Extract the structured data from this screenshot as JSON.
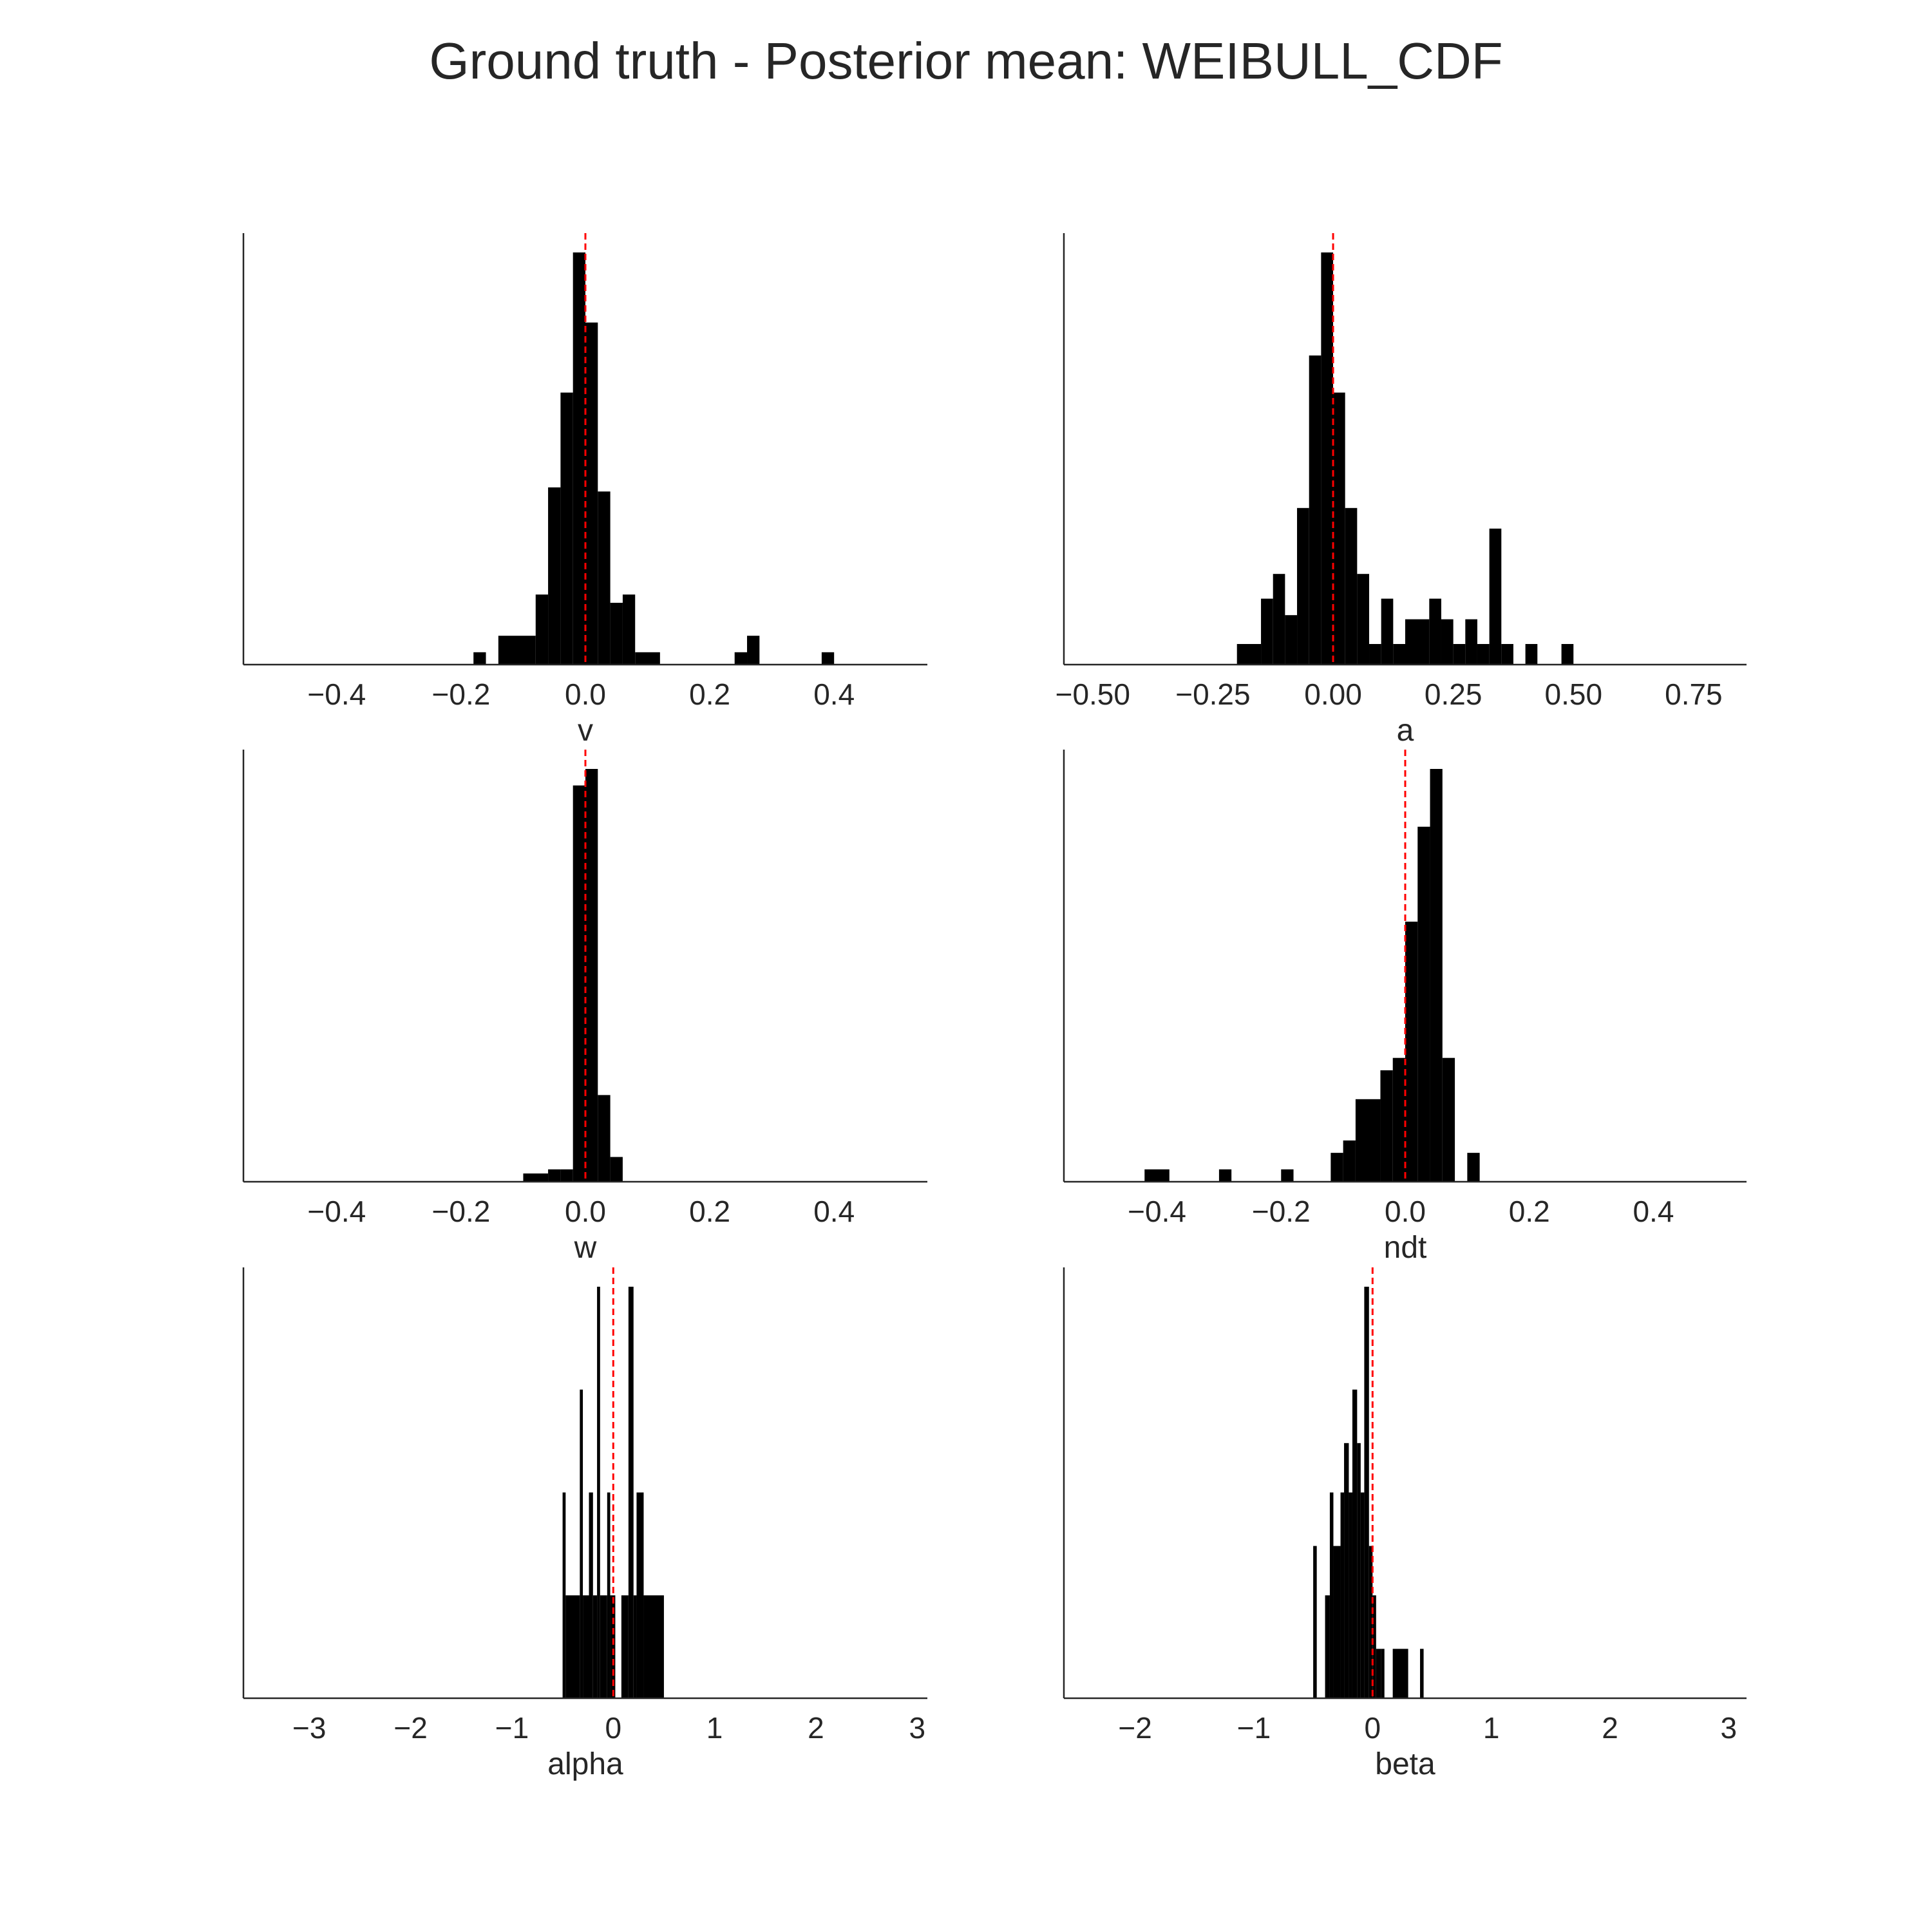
{
  "title": "Ground truth - Posterior mean: WEIBULL_CDF",
  "colors": {
    "bars": "#000000",
    "reference_line": "#ff0000",
    "axes": "#262626",
    "rug": "#b0b0b0"
  },
  "chart_data": [
    {
      "type": "histogram",
      "xlabel": "v",
      "xlim": [
        -0.55,
        0.55
      ],
      "ticks": [
        -0.4,
        -0.2,
        0.0,
        0.2,
        0.4
      ],
      "tick_labels": [
        "−0.4",
        "−0.2",
        "0.0",
        "0.2",
        "0.4"
      ],
      "reference_x": 0.0,
      "grid": false,
      "ymax": 100,
      "bins": [
        {
          "x0": -0.18,
          "x1": -0.16,
          "h": 3
        },
        {
          "x0": -0.14,
          "x1": -0.08,
          "h": 7
        },
        {
          "x0": -0.08,
          "x1": -0.06,
          "h": 17
        },
        {
          "x0": -0.06,
          "x1": -0.04,
          "h": 43
        },
        {
          "x0": -0.04,
          "x1": -0.02,
          "h": 66
        },
        {
          "x0": -0.02,
          "x1": 0.0,
          "h": 100
        },
        {
          "x0": 0.0,
          "x1": 0.02,
          "h": 83
        },
        {
          "x0": 0.02,
          "x1": 0.04,
          "h": 42
        },
        {
          "x0": 0.04,
          "x1": 0.06,
          "h": 15
        },
        {
          "x0": 0.06,
          "x1": 0.08,
          "h": 17
        },
        {
          "x0": 0.08,
          "x1": 0.12,
          "h": 3
        },
        {
          "x0": 0.24,
          "x1": 0.26,
          "h": 3
        },
        {
          "x0": 0.26,
          "x1": 0.28,
          "h": 7
        },
        {
          "x0": 0.38,
          "x1": 0.4,
          "h": 3
        }
      ]
    },
    {
      "type": "histogram",
      "xlabel": "a",
      "xlim": [
        -0.56,
        0.86
      ],
      "ticks": [
        -0.5,
        -0.25,
        0.0,
        0.25,
        0.5,
        0.75
      ],
      "tick_labels": [
        "−0.50",
        "−0.25",
        "0.00",
        "0.25",
        "0.50",
        "0.75"
      ],
      "reference_x": 0.0,
      "grid": false,
      "ymax": 100,
      "bins": [
        {
          "x0": -0.2,
          "x1": -0.15,
          "h": 5
        },
        {
          "x0": -0.15,
          "x1": -0.125,
          "h": 16
        },
        {
          "x0": -0.125,
          "x1": -0.1,
          "h": 22
        },
        {
          "x0": -0.1,
          "x1": -0.075,
          "h": 12
        },
        {
          "x0": -0.075,
          "x1": -0.05,
          "h": 38
        },
        {
          "x0": -0.05,
          "x1": -0.025,
          "h": 75
        },
        {
          "x0": -0.025,
          "x1": 0.0,
          "h": 100
        },
        {
          "x0": 0.0,
          "x1": 0.025,
          "h": 66
        },
        {
          "x0": 0.025,
          "x1": 0.05,
          "h": 38
        },
        {
          "x0": 0.05,
          "x1": 0.075,
          "h": 22
        },
        {
          "x0": 0.075,
          "x1": 0.1,
          "h": 5
        },
        {
          "x0": 0.1,
          "x1": 0.125,
          "h": 16
        },
        {
          "x0": 0.125,
          "x1": 0.15,
          "h": 5
        },
        {
          "x0": 0.15,
          "x1": 0.2,
          "h": 11
        },
        {
          "x0": 0.2,
          "x1": 0.225,
          "h": 16
        },
        {
          "x0": 0.225,
          "x1": 0.25,
          "h": 11
        },
        {
          "x0": 0.25,
          "x1": 0.275,
          "h": 5
        },
        {
          "x0": 0.275,
          "x1": 0.3,
          "h": 11
        },
        {
          "x0": 0.3,
          "x1": 0.325,
          "h": 5
        },
        {
          "x0": 0.325,
          "x1": 0.35,
          "h": 33
        },
        {
          "x0": 0.35,
          "x1": 0.375,
          "h": 5
        },
        {
          "x0": 0.4,
          "x1": 0.425,
          "h": 5
        },
        {
          "x0": 0.475,
          "x1": 0.5,
          "h": 5
        }
      ]
    },
    {
      "type": "histogram",
      "xlabel": "w",
      "xlim": [
        -0.55,
        0.55
      ],
      "ticks": [
        -0.4,
        -0.2,
        0.0,
        0.2,
        0.4
      ],
      "tick_labels": [
        "−0.4",
        "−0.2",
        "0.0",
        "0.2",
        "0.4"
      ],
      "reference_x": 0.0,
      "grid": false,
      "ymax": 100,
      "bins": [
        {
          "x0": -0.1,
          "x1": -0.06,
          "h": 2
        },
        {
          "x0": -0.06,
          "x1": -0.04,
          "h": 3
        },
        {
          "x0": -0.04,
          "x1": -0.02,
          "h": 3
        },
        {
          "x0": -0.02,
          "x1": 0.0,
          "h": 96
        },
        {
          "x0": 0.0,
          "x1": 0.02,
          "h": 100
        },
        {
          "x0": 0.02,
          "x1": 0.04,
          "h": 21
        },
        {
          "x0": 0.04,
          "x1": 0.06,
          "h": 6
        }
      ]
    },
    {
      "type": "histogram",
      "xlabel": "ndt",
      "xlim": [
        -0.55,
        0.55
      ],
      "ticks": [
        -0.4,
        -0.2,
        0.0,
        0.2,
        0.4
      ],
      "tick_labels": [
        "−0.4",
        "−0.2",
        "0.0",
        "0.2",
        "0.4"
      ],
      "reference_x": 0.0,
      "grid": false,
      "ymax": 100,
      "bins": [
        {
          "x0": -0.42,
          "x1": -0.38,
          "h": 3
        },
        {
          "x0": -0.3,
          "x1": -0.28,
          "h": 3
        },
        {
          "x0": -0.2,
          "x1": -0.18,
          "h": 3
        },
        {
          "x0": -0.12,
          "x1": -0.1,
          "h": 7
        },
        {
          "x0": -0.1,
          "x1": -0.08,
          "h": 10
        },
        {
          "x0": -0.08,
          "x1": -0.04,
          "h": 20
        },
        {
          "x0": -0.04,
          "x1": -0.02,
          "h": 27
        },
        {
          "x0": -0.02,
          "x1": 0.0,
          "h": 30
        },
        {
          "x0": 0.0,
          "x1": 0.02,
          "h": 63
        },
        {
          "x0": 0.02,
          "x1": 0.04,
          "h": 86
        },
        {
          "x0": 0.04,
          "x1": 0.06,
          "h": 100
        },
        {
          "x0": 0.06,
          "x1": 0.08,
          "h": 30
        },
        {
          "x0": 0.1,
          "x1": 0.12,
          "h": 7
        }
      ]
    },
    {
      "type": "histogram",
      "xlabel": "alpha",
      "xlim": [
        -3.65,
        3.1
      ],
      "ticks": [
        -3,
        -2,
        -1,
        0,
        1,
        2,
        3
      ],
      "tick_labels": [
        "−3",
        "−2",
        "−1",
        "0",
        "1",
        "2",
        "3"
      ],
      "reference_x": 0.0,
      "grid": false,
      "ymax": 100,
      "bins": [
        {
          "x0": -0.5,
          "x1": -0.47,
          "h": 50
        },
        {
          "x0": -0.47,
          "x1": -0.33,
          "h": 25
        },
        {
          "x0": -0.33,
          "x1": -0.3,
          "h": 75
        },
        {
          "x0": -0.3,
          "x1": -0.24,
          "h": 25
        },
        {
          "x0": -0.24,
          "x1": -0.2,
          "h": 50
        },
        {
          "x0": -0.2,
          "x1": -0.16,
          "h": 25
        },
        {
          "x0": -0.16,
          "x1": -0.13,
          "h": 100
        },
        {
          "x0": -0.13,
          "x1": -0.06,
          "h": 25
        },
        {
          "x0": -0.06,
          "x1": -0.03,
          "h": 50
        },
        {
          "x0": -0.03,
          "x1": 0.02,
          "h": 25
        },
        {
          "x0": 0.08,
          "x1": 0.15,
          "h": 25
        },
        {
          "x0": 0.15,
          "x1": 0.2,
          "h": 100
        },
        {
          "x0": 0.2,
          "x1": 0.23,
          "h": 25
        },
        {
          "x0": 0.23,
          "x1": 0.3,
          "h": 50
        },
        {
          "x0": 0.3,
          "x1": 0.5,
          "h": 25
        }
      ]
    },
    {
      "type": "histogram",
      "xlabel": "beta",
      "xlim": [
        -2.6,
        3.15
      ],
      "ticks": [
        -2,
        -1,
        0,
        1,
        2,
        3
      ],
      "tick_labels": [
        "−2",
        "−1",
        "0",
        "1",
        "2",
        "3"
      ],
      "reference_x": 0.0,
      "grid": false,
      "ymax": 100,
      "bins": [
        {
          "x0": -0.5,
          "x1": -0.47,
          "h": 37
        },
        {
          "x0": -0.4,
          "x1": -0.36,
          "h": 25
        },
        {
          "x0": -0.36,
          "x1": -0.33,
          "h": 50
        },
        {
          "x0": -0.33,
          "x1": -0.27,
          "h": 37
        },
        {
          "x0": -0.27,
          "x1": -0.24,
          "h": 50
        },
        {
          "x0": -0.24,
          "x1": -0.2,
          "h": 62
        },
        {
          "x0": -0.2,
          "x1": -0.17,
          "h": 50
        },
        {
          "x0": -0.17,
          "x1": -0.13,
          "h": 75
        },
        {
          "x0": -0.13,
          "x1": -0.1,
          "h": 62
        },
        {
          "x0": -0.1,
          "x1": -0.07,
          "h": 50
        },
        {
          "x0": -0.07,
          "x1": -0.03,
          "h": 100
        },
        {
          "x0": -0.03,
          "x1": 0.0,
          "h": 37
        },
        {
          "x0": 0.0,
          "x1": 0.03,
          "h": 25
        },
        {
          "x0": 0.03,
          "x1": 0.07,
          "h": 12
        },
        {
          "x0": 0.07,
          "x1": 0.1,
          "h": 12
        },
        {
          "x0": 0.17,
          "x1": 0.3,
          "h": 12
        },
        {
          "x0": 0.4,
          "x1": 0.43,
          "h": 12
        }
      ]
    }
  ]
}
